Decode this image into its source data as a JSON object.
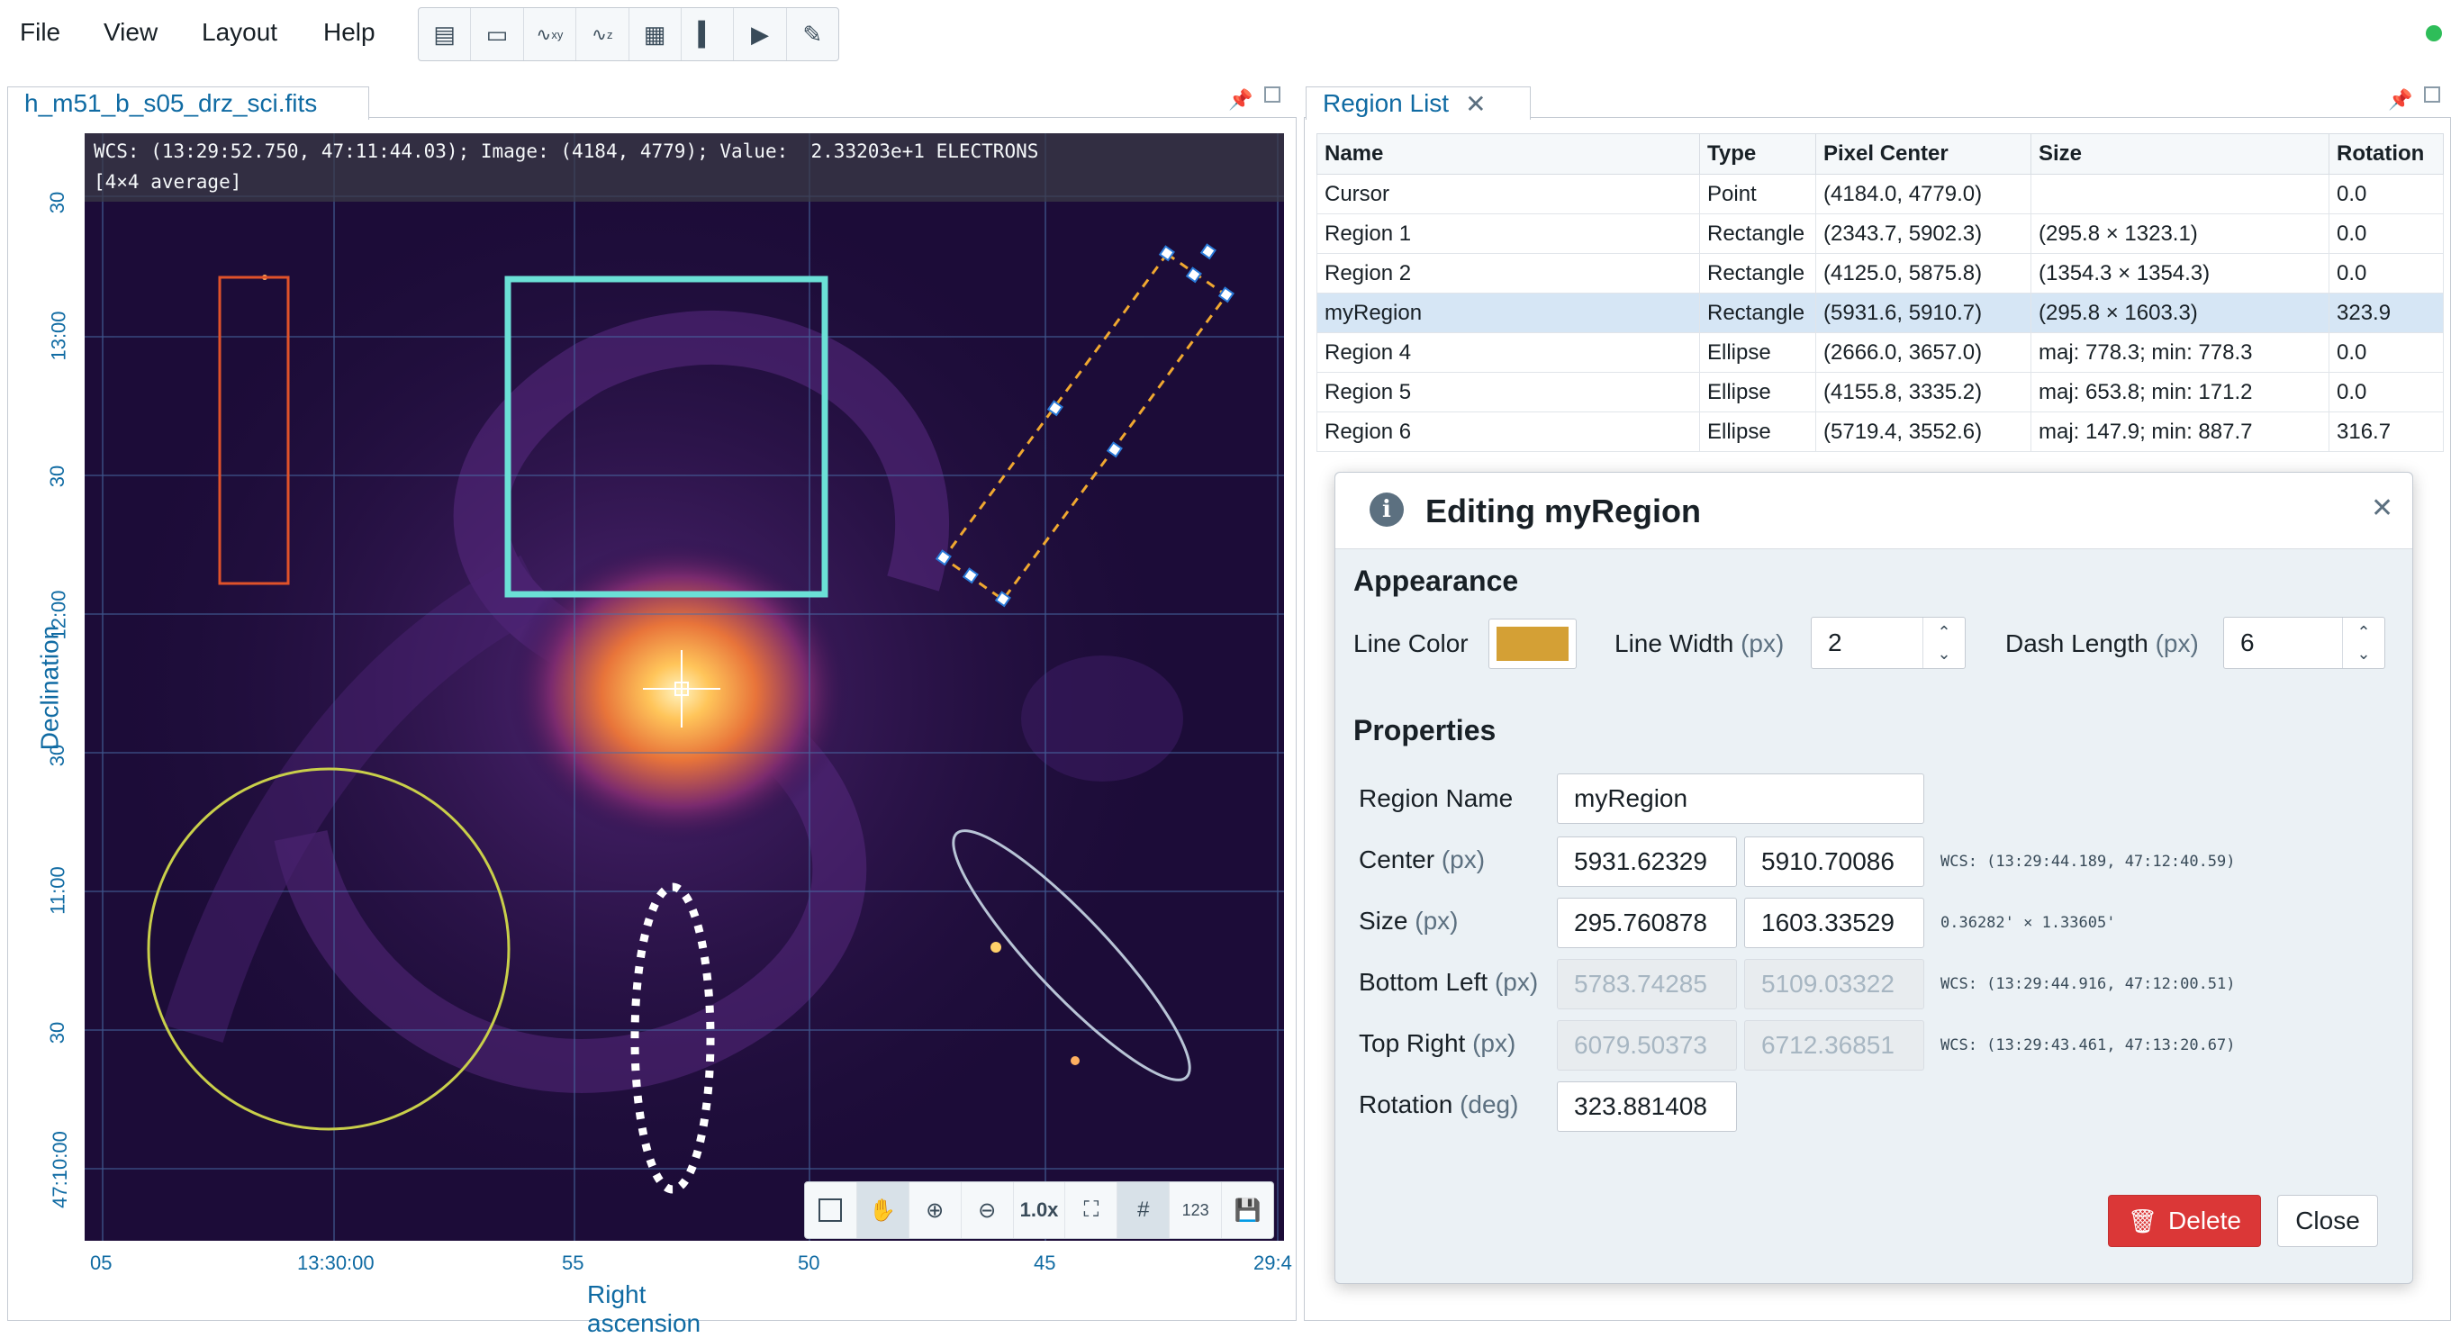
{
  "menu": {
    "items": [
      "File",
      "View",
      "Layout",
      "Help"
    ]
  },
  "toolbar": {
    "icons": [
      "list-icon",
      "info-panel-icon",
      "spatial-profile-icon",
      "spectral-profile-icon",
      "calculator-icon",
      "histogram-icon",
      "animator-icon",
      "edit-icon"
    ]
  },
  "status": {
    "color": "#2ebd59"
  },
  "image_panel": {
    "tab_label": "h_m51_b_s05_drz_sci.fits",
    "info_line1": "WCS: (13:29:52.750, 47:11:44.03); Image: (4184, 4779); Value:  2.33203e+1 ELECTRONS",
    "info_line2": "[4×4 average]",
    "ra_ticks": [
      "05",
      "13:30:00",
      "55",
      "50",
      "45",
      "29:4"
    ],
    "dec_ticks": [
      "30",
      "13:00",
      "30",
      "12:00",
      "30",
      "11:00",
      "30",
      "47:10:00"
    ],
    "xlabel": "Right ascension",
    "ylabel": "Declination",
    "zoom_label": "1.0x",
    "number_label": "123"
  },
  "region_panel": {
    "tab_label": "Region List",
    "columns": [
      "Name",
      "Type",
      "Pixel Center",
      "Size",
      "Rotation"
    ],
    "rows": [
      [
        "Cursor",
        "Point",
        "(4184.0, 4779.0)",
        "",
        "0.0"
      ],
      [
        "Region 1",
        "Rectangle",
        "(2343.7, 5902.3)",
        "(295.8 × 1323.1)",
        "0.0"
      ],
      [
        "Region 2",
        "Rectangle",
        "(4125.0, 5875.8)",
        "(1354.3 × 1354.3)",
        "0.0"
      ],
      [
        "myRegion",
        "Rectangle",
        "(5931.6, 5910.7)",
        "(295.8 × 1603.3)",
        "323.9"
      ],
      [
        "Region 4",
        "Ellipse",
        "(2666.0, 3657.0)",
        "maj: 778.3; min: 778.3",
        "0.0"
      ],
      [
        "Region 5",
        "Ellipse",
        "(4155.8, 3335.2)",
        "maj: 653.8; min: 171.2",
        "0.0"
      ],
      [
        "Region 6",
        "Ellipse",
        "(5719.4, 3552.6)",
        "maj: 147.9; min: 887.7",
        "316.7"
      ]
    ],
    "selected_row": 3
  },
  "dialog": {
    "title": "Editing myRegion",
    "appearance_heading": "Appearance",
    "line_color_label": "Line Color",
    "line_color": "#d4a035",
    "line_width_label": "Line Width",
    "line_width_unit": "(px)",
    "line_width": "2",
    "dash_length_label": "Dash Length",
    "dash_length_unit": "(px)",
    "dash_length": "6",
    "properties_heading": "Properties",
    "region_name_label": "Region Name",
    "region_name": "myRegion",
    "center_label": "Center",
    "center_unit": "(px)",
    "center_x": "5931.62329",
    "center_y": "5910.70086",
    "center_wcs": "WCS: (13:29:44.189, 47:12:40.59)",
    "size_label": "Size",
    "size_unit": "(px)",
    "size_w": "295.760878",
    "size_h": "1603.33529",
    "size_wcs": "0.36282' × 1.33605'",
    "bottom_left_label": "Bottom Left",
    "bottom_left_unit": "(px)",
    "bottom_left_x": "5783.74285",
    "bottom_left_y": "5109.03322",
    "bottom_left_wcs": "WCS: (13:29:44.916, 47:12:00.51)",
    "top_right_label": "Top Right",
    "top_right_unit": "(px)",
    "top_right_x": "6079.50373",
    "top_right_y": "6712.36851",
    "top_right_wcs": "WCS: (13:29:43.461, 47:13:20.67)",
    "rotation_label": "Rotation",
    "rotation_unit": "(deg)",
    "rotation": "323.881408",
    "delete_label": "Delete",
    "close_label": "Close"
  },
  "region_colors": {
    "region1": "#e0522a",
    "region2": "#6be0d6",
    "myregion": "#f0a830",
    "region4": "#c9cf4a",
    "region5": "#ffffff",
    "region6": "#b8c4d6"
  }
}
